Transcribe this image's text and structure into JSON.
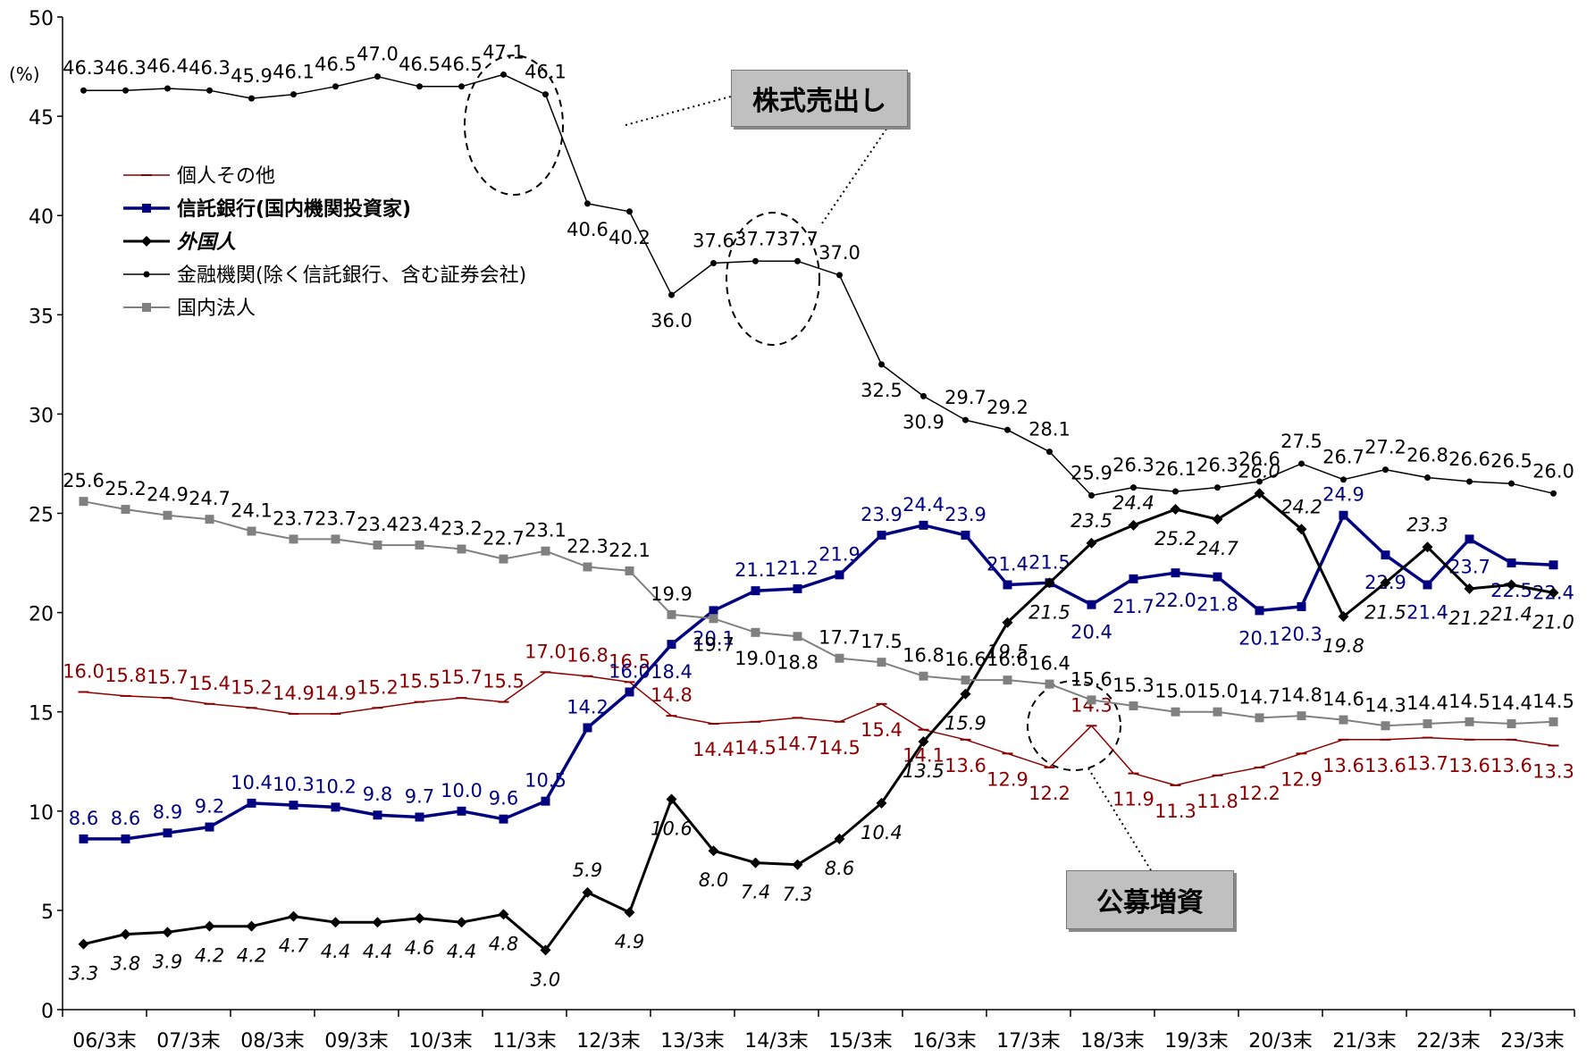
{
  "chart_data": {
    "type": "line",
    "unit_label": "(%)",
    "ylim": [
      0,
      50
    ],
    "yticks": [
      0,
      5,
      10,
      15,
      20,
      25,
      30,
      35,
      40,
      45,
      50
    ],
    "xlabels": [
      "06/3末",
      "07/3末",
      "08/3末",
      "09/3末",
      "10/3末",
      "11/3末",
      "12/3末",
      "13/3末",
      "14/3末",
      "15/3末",
      "16/3末",
      "17/3末",
      "18/3末",
      "19/3末",
      "20/3末",
      "21/3末",
      "22/3末",
      "23/3末"
    ],
    "grid": false,
    "legend_position": "upper-left",
    "series": [
      {
        "name": "個人その他",
        "color": "#8b0000",
        "marker": "dash",
        "bold": false,
        "italic": false,
        "width": 1.5,
        "values": [
          16.0,
          15.8,
          15.7,
          15.4,
          15.2,
          14.9,
          14.9,
          15.2,
          15.5,
          15.7,
          15.5,
          17.0,
          16.8,
          16.5,
          14.8,
          14.4,
          14.5,
          14.7,
          14.5,
          15.4,
          14.1,
          13.6,
          12.9,
          12.2,
          14.3,
          11.9,
          11.3,
          11.8,
          12.2,
          12.9,
          13.6,
          13.6,
          13.7,
          13.6,
          13.6,
          13.3
        ]
      },
      {
        "name": "信託銀行(国内機関投資家)",
        "color": "#000080",
        "marker": "square",
        "bold": true,
        "italic": false,
        "width": 3.5,
        "values": [
          8.6,
          8.6,
          8.9,
          9.2,
          10.4,
          10.3,
          10.2,
          9.8,
          9.7,
          10.0,
          9.6,
          10.5,
          14.2,
          16.0,
          18.4,
          20.1,
          21.1,
          21.2,
          21.9,
          23.9,
          24.4,
          23.9,
          21.4,
          21.5,
          20.4,
          21.7,
          22.0,
          21.8,
          20.1,
          20.3,
          24.9,
          22.9,
          21.4,
          23.7,
          22.5,
          22.4
        ]
      },
      {
        "name": "外国人",
        "color": "#000000",
        "marker": "diamond",
        "bold": true,
        "italic": true,
        "width": 3,
        "values": [
          3.3,
          3.8,
          3.9,
          4.2,
          4.2,
          4.7,
          4.4,
          4.4,
          4.6,
          4.4,
          4.8,
          3.0,
          5.9,
          4.9,
          10.6,
          8.0,
          7.4,
          7.3,
          8.6,
          10.4,
          13.5,
          15.9,
          19.5,
          21.5,
          23.5,
          24.4,
          25.2,
          24.7,
          26.0,
          24.2,
          19.8,
          21.5,
          23.3,
          21.2,
          21.4,
          21.0
        ]
      },
      {
        "name": "金融機関(除く信託銀行、含む証券会社)",
        "color": "#000000",
        "marker": "dot",
        "bold": false,
        "italic": false,
        "width": 1.5,
        "values": [
          46.3,
          46.3,
          46.4,
          46.3,
          45.9,
          46.1,
          46.5,
          47.0,
          46.5,
          46.5,
          47.1,
          46.1,
          40.6,
          40.2,
          36.0,
          37.6,
          37.7,
          37.7,
          37.0,
          32.5,
          30.9,
          29.7,
          29.2,
          28.1,
          25.9,
          26.3,
          26.1,
          26.3,
          26.6,
          27.5,
          26.7,
          27.2,
          26.8,
          26.6,
          26.5,
          26.0
        ]
      },
      {
        "name": "国内法人",
        "color": "#808080",
        "marker": "square",
        "bold": false,
        "italic": false,
        "width": 2,
        "values": [
          25.6,
          25.2,
          24.9,
          24.7,
          24.1,
          23.7,
          23.7,
          23.4,
          23.4,
          23.2,
          22.7,
          23.1,
          22.3,
          22.1,
          19.9,
          19.7,
          19.0,
          18.8,
          17.7,
          17.5,
          16.8,
          16.6,
          16.6,
          16.4,
          15.6,
          15.3,
          15.0,
          15.0,
          14.7,
          14.8,
          14.6,
          14.3,
          14.4,
          14.5,
          14.4,
          14.5
        ]
      }
    ],
    "annotations": [
      {
        "text": "株式売出し"
      },
      {
        "text": "公募増資"
      }
    ]
  }
}
